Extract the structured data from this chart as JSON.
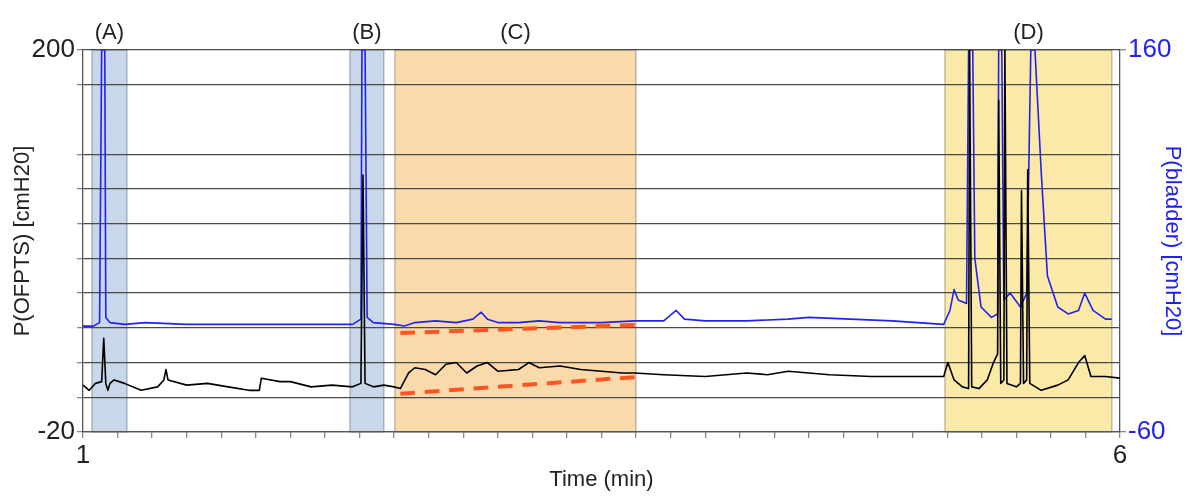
{
  "chart_data": {
    "type": "line",
    "xlabel": "Time (min)",
    "ylabel": "P(OFPTS) [cmH20]",
    "y2label": "P(bladder) [cmH20]",
    "xlim": [
      1,
      6
    ],
    "ylim": [
      -20,
      200
    ],
    "y2lim": [
      -60,
      160
    ],
    "xticks": [
      1,
      {
        "value": 1.167,
        "label": null
      },
      {
        "value": 1.333,
        "label": null
      },
      {
        "value": 1.5,
        "label": null
      },
      {
        "value": 1.667,
        "label": null
      },
      {
        "value": 1.833,
        "label": null
      },
      {
        "value": 2,
        "label": null
      },
      {
        "value": 2.167,
        "label": null
      },
      {
        "value": 2.333,
        "label": null
      },
      {
        "value": 2.5,
        "label": null
      },
      {
        "value": 2.667,
        "label": null
      },
      {
        "value": 2.833,
        "label": null
      },
      {
        "value": 3,
        "label": null
      },
      {
        "value": 3.167,
        "label": null
      },
      {
        "value": 3.333,
        "label": null
      },
      {
        "value": 3.5,
        "label": null
      },
      {
        "value": 3.667,
        "label": null
      },
      {
        "value": 3.833,
        "label": null
      },
      {
        "value": 4,
        "label": null
      },
      {
        "value": 4.167,
        "label": null
      },
      {
        "value": 4.333,
        "label": null
      },
      {
        "value": 4.5,
        "label": null
      },
      {
        "value": 4.667,
        "label": null
      },
      {
        "value": 4.833,
        "label": null
      },
      {
        "value": 5,
        "label": null
      },
      {
        "value": 5.167,
        "label": null
      },
      {
        "value": 5.333,
        "label": null
      },
      {
        "value": 5.5,
        "label": null
      },
      {
        "value": 5.667,
        "label": null
      },
      {
        "value": 5.833,
        "label": null
      },
      6
    ],
    "yticks": [
      -20,
      {
        "value": 0,
        "label": null
      },
      {
        "value": 20,
        "label": null
      },
      {
        "value": 40,
        "label": null
      },
      {
        "value": 60,
        "label": null
      },
      {
        "value": 80,
        "label": null
      },
      {
        "value": 100,
        "label": null
      },
      {
        "value": 120,
        "label": null
      },
      {
        "value": 140,
        "label": null
      },
      {
        "value": 180,
        "label": null
      },
      200
    ],
    "y2ticks": [
      -60,
      160
    ],
    "grid": "y",
    "legend": false,
    "marker": "none",
    "bands": [
      {
        "axis": "x",
        "from": 1.043,
        "to": 1.212,
        "label": "(A)",
        "color": "#c8d8ea"
      },
      {
        "axis": "x",
        "from": 2.287,
        "to": 2.451,
        "label": "(B)",
        "color": "#c8d8ea"
      },
      {
        "axis": "x",
        "from": 2.504,
        "to": 3.666,
        "label": "(C)",
        "color": "#fadaaa"
      },
      {
        "axis": "x",
        "from": 5.156,
        "to": 5.961,
        "label": "(D)",
        "color": "#fbe9a8"
      }
    ],
    "series": [
      {
        "color": "#000000",
        "line_style": "solid",
        "x": [
          1.0,
          1.03,
          1.06,
          1.09,
          1.1,
          1.11,
          1.12,
          1.13,
          1.15,
          1.2,
          1.28,
          1.36,
          1.39,
          1.4,
          1.41,
          1.5,
          1.6,
          1.7,
          1.8,
          1.85,
          1.86,
          1.95,
          2.0,
          2.1,
          2.2,
          2.3,
          2.34,
          2.35,
          2.36,
          2.4,
          2.45,
          2.5,
          2.53,
          2.57,
          2.6,
          2.65,
          2.7,
          2.75,
          2.8,
          2.85,
          2.9,
          2.95,
          3.0,
          3.1,
          3.15,
          3.2,
          3.3,
          3.4,
          3.5,
          3.6,
          3.66,
          3.8,
          4.0,
          4.2,
          4.3,
          4.4,
          4.6,
          4.8,
          5.0,
          5.15,
          5.17,
          5.2,
          5.24,
          5.27,
          5.275,
          5.285,
          5.32,
          5.36,
          5.39,
          5.41,
          5.415,
          5.425,
          5.44,
          5.445,
          5.455,
          5.5,
          5.52,
          5.525,
          5.535,
          5.55,
          5.555,
          5.565,
          5.62,
          5.7,
          5.75,
          5.8,
          5.83,
          5.86,
          5.93,
          6.0
        ],
        "values": [
          7,
          4,
          8,
          9,
          34,
          8,
          4,
          8,
          10,
          8,
          4,
          6,
          10,
          16,
          10,
          7,
          8,
          6,
          4,
          4,
          11,
          9,
          9,
          6,
          7,
          6,
          8,
          128,
          8,
          6,
          7,
          6,
          5,
          14,
          17,
          16,
          13,
          19,
          20,
          14,
          18,
          20,
          15,
          16,
          20,
          17,
          18,
          16,
          15,
          14,
          14,
          13,
          12,
          14,
          13,
          15,
          13,
          12,
          12,
          12,
          20,
          10,
          6,
          5,
          200,
          6,
          5,
          10,
          20,
          25,
          171,
          8,
          10,
          200,
          8,
          6,
          8,
          119,
          8,
          10,
          131,
          8,
          4,
          7,
          10,
          20,
          24,
          12,
          12,
          11
        ]
      },
      {
        "color": "#2222ee",
        "axis": "y2",
        "line_style": "solid",
        "x": [
          1.0,
          1.05,
          1.08,
          1.09,
          1.105,
          1.11,
          1.13,
          1.2,
          1.3,
          1.5,
          1.7,
          1.9,
          2.1,
          2.3,
          2.34,
          2.345,
          2.36,
          2.37,
          2.4,
          2.5,
          2.55,
          2.6,
          2.7,
          2.8,
          2.88,
          2.92,
          2.95,
          3.0,
          3.1,
          3.2,
          3.3,
          3.5,
          3.66,
          3.8,
          3.86,
          3.9,
          4.0,
          4.2,
          4.4,
          4.5,
          4.7,
          4.9,
          5.15,
          5.18,
          5.2,
          5.22,
          5.26,
          5.27,
          5.29,
          5.3,
          5.33,
          5.38,
          5.41,
          5.415,
          5.43,
          5.44,
          5.47,
          5.52,
          5.55,
          5.57,
          5.59,
          5.62,
          5.65,
          5.7,
          5.75,
          5.8,
          5.83,
          5.87,
          5.93,
          5.96
        ],
        "values": [
          1,
          1,
          3,
          160,
          160,
          6,
          3,
          2,
          3,
          2,
          2,
          2,
          2,
          2,
          5,
          160,
          160,
          6,
          3,
          2,
          1,
          3,
          4,
          3,
          5,
          9,
          5,
          3,
          3,
          4,
          3,
          3,
          4,
          4,
          10,
          5,
          4,
          4,
          5,
          6,
          5,
          4,
          2,
          10,
          22,
          16,
          14,
          160,
          160,
          40,
          12,
          6,
          8,
          160,
          160,
          16,
          20,
          12,
          20,
          160,
          160,
          90,
          30,
          12,
          8,
          10,
          20,
          10,
          5,
          5
        ]
      },
      {
        "type": "line",
        "color": "#ff5522",
        "line_style": "dashed",
        "x": [
          2.53,
          3.66
        ],
        "values": [
          2,
          11.6
        ]
      },
      {
        "type": "line",
        "color": "#ff5522",
        "line_style": "dashed",
        "axis": "y2",
        "x": [
          2.53,
          3.66
        ],
        "values": [
          -3,
          1.6
        ]
      }
    ]
  }
}
